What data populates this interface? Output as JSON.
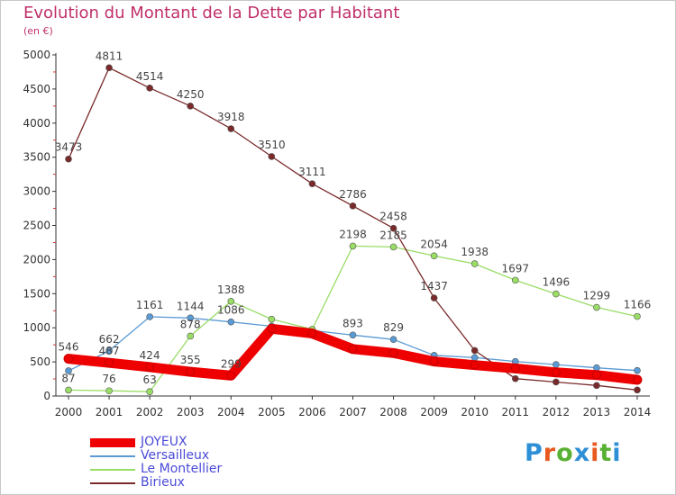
{
  "header": {
    "title": "Evolution du Montant de la Dette par Habitant",
    "subtitle": "(en €)"
  },
  "logo": {
    "text": "Proxiti",
    "letter_colors": [
      "#2d8fd6",
      "#e8591f",
      "#58b132",
      "#2d8fd6",
      "#e8591f",
      "#58b132",
      "#2d8fd6"
    ]
  },
  "chart_data": {
    "type": "line",
    "title": "Evolution du Montant de la Dette par Habitant",
    "subtitle": "(en €)",
    "xlabel": "",
    "ylabel": "",
    "x": [
      "2000",
      "2001",
      "2002",
      "2003",
      "2004",
      "2005",
      "2006",
      "2007",
      "2008",
      "2009",
      "2010",
      "2011",
      "2012",
      "2013",
      "2014"
    ],
    "ylim": [
      0,
      5000
    ],
    "yticks": [
      "0",
      "500",
      "1000",
      "1500",
      "2000",
      "2500",
      "3000",
      "3500",
      "4000",
      "4500",
      "5000"
    ],
    "grid": "off",
    "legend_position": "bottom-left",
    "series": [
      {
        "name": "JOYEUX",
        "color": "#ee0000",
        "highlight": true,
        "values": [
          546,
          487,
          424,
          355,
          299,
          985,
          915,
          689,
          629,
          507,
          453,
          404,
          345,
          308,
          238
        ],
        "labels": [
          "546",
          "487",
          "424",
          "355",
          "299",
          "",
          "",
          "",
          "",
          "",
          "",
          "",
          "",
          "",
          ""
        ]
      },
      {
        "name": "Versailleux",
        "color": "#5b9bd5",
        "highlight": false,
        "values": [
          370,
          662,
          1161,
          1144,
          1086,
          1023,
          960,
          893,
          829,
          596,
          563,
          506,
          461,
          413,
          374
        ],
        "labels": [
          "",
          "662",
          "1161",
          "1144",
          "1086",
          "",
          "",
          "893",
          "829",
          "",
          "",
          "",
          "",
          "",
          ""
        ]
      },
      {
        "name": "Le Montellier",
        "color": "#99dd66",
        "highlight": false,
        "values": [
          87,
          76,
          63,
          878,
          1388,
          1126,
          978,
          2198,
          2185,
          2054,
          1938,
          1697,
          1496,
          1299,
          1166
        ],
        "labels": [
          "87",
          "76",
          "63",
          "878",
          "1388",
          "",
          "",
          "2198",
          "2185",
          "2054",
          "1938",
          "1697",
          "1496",
          "1299",
          "1166"
        ]
      },
      {
        "name": "Birieux",
        "color": "#7a2a2a",
        "highlight": false,
        "values": [
          3473,
          4811,
          4514,
          4250,
          3918,
          3510,
          3111,
          2786,
          2458,
          1437,
          667,
          254,
          205,
          154,
          88
        ],
        "labels": [
          "3473",
          "4811",
          "4514",
          "4250",
          "3918",
          "3510",
          "3111",
          "2786",
          "2458",
          "1437",
          "",
          "",
          "",
          "",
          ""
        ]
      }
    ]
  }
}
